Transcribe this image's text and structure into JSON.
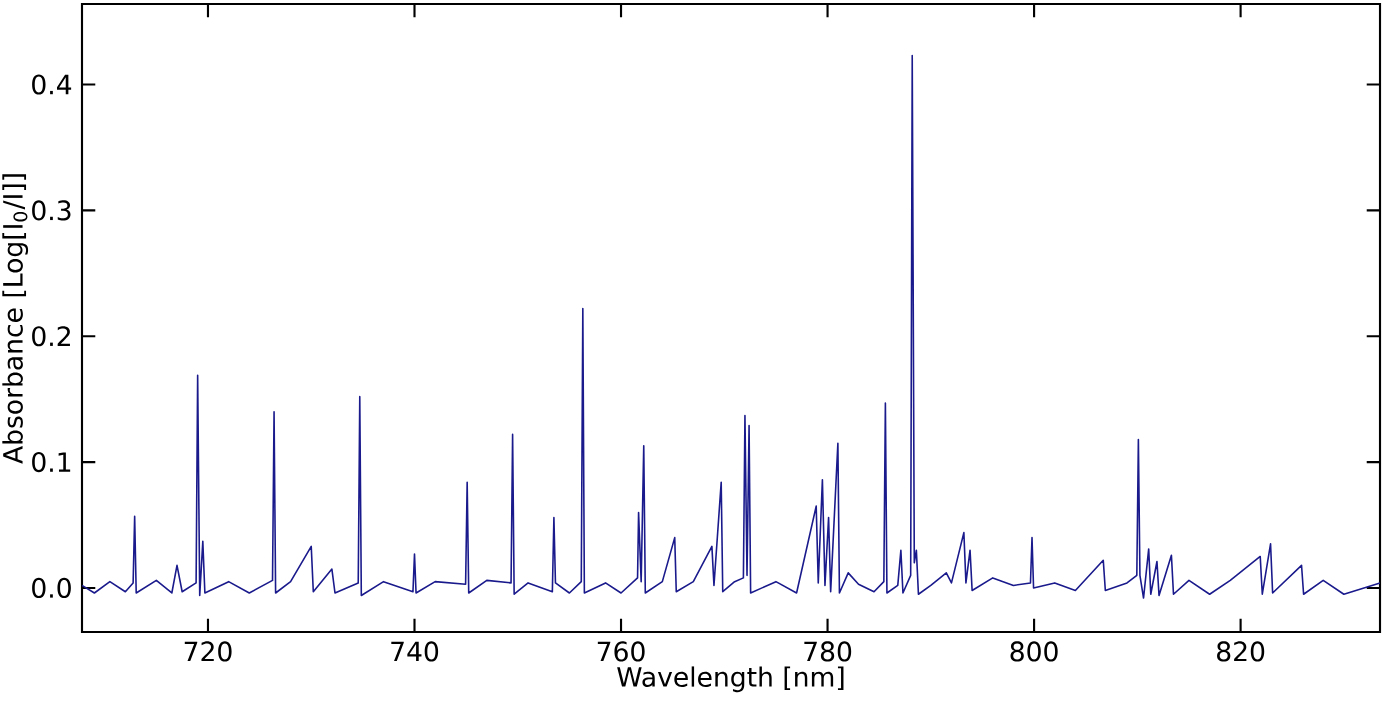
{
  "chart_data": {
    "type": "line",
    "xlabel": "Wavelength [nm]",
    "ylabel": "Absorbance [Log[I$_{0}$/I]]",
    "color": "#1a1a8c",
    "grid": false,
    "marker": "none",
    "line_style": "solid",
    "xlim": [
      707.8,
      833.5
    ],
    "ylim": [
      -0.035,
      0.464
    ],
    "xticks": [
      720,
      740,
      760,
      780,
      800,
      820
    ],
    "yticks": [
      {
        "value": 0,
        "label": "0.0"
      },
      {
        "value": 0.1,
        "label": "0.1"
      },
      {
        "value": 0.2,
        "label": "0.2"
      },
      {
        "value": 0.3,
        "label": "0.3"
      },
      {
        "value": 0.4,
        "label": "0.4"
      }
    ],
    "x": [
      707.8,
      709,
      710.5,
      712,
      712.75,
      712.9,
      713.05,
      715,
      716.5,
      717,
      717.5,
      718.85,
      719.0,
      719.2,
      719.5,
      719.7,
      722,
      724,
      726.25,
      726.4,
      726.55,
      728,
      730,
      730.2,
      732,
      732.3,
      734.55,
      734.7,
      734.85,
      737,
      739.85,
      740,
      740.15,
      742,
      744.95,
      745.1,
      745.25,
      747,
      749.35,
      749.5,
      749.65,
      751,
      753.35,
      753.5,
      753.65,
      755,
      756.15,
      756.3,
      756.45,
      758.5,
      760,
      761.6,
      761.7,
      761.95,
      762.2,
      762.35,
      764,
      765.2,
      765.35,
      767,
      768.8,
      769.0,
      769.7,
      769.85,
      771,
      771.85,
      772.0,
      772.2,
      772.4,
      772.55,
      775,
      777,
      778.9,
      779.1,
      779.5,
      779.75,
      780.1,
      780.3,
      781.0,
      781.15,
      782,
      783,
      784.5,
      785.45,
      785.6,
      785.75,
      786.8,
      787.1,
      787.3,
      788.05,
      788.2,
      788.4,
      788.6,
      788.8,
      790,
      791.5,
      792,
      793.2,
      793.4,
      793.8,
      794,
      796,
      798,
      799.65,
      799.8,
      799.95,
      802,
      804,
      806.7,
      806.9,
      809,
      809.95,
      810.1,
      810.25,
      810.6,
      811.1,
      811.3,
      811.9,
      812.1,
      813.3,
      813.5,
      815,
      817,
      819,
      821.9,
      822.1,
      822.9,
      823.1,
      825.9,
      826.1,
      828,
      830,
      833.5
    ],
    "values": [
      0.002,
      -0.004,
      0.005,
      -0.003,
      0.004,
      0.057,
      -0.004,
      0.006,
      -0.004,
      0.018,
      -0.003,
      0.004,
      0.169,
      -0.006,
      0.037,
      -0.004,
      0.005,
      -0.004,
      0.006,
      0.14,
      -0.004,
      0.005,
      0.033,
      -0.003,
      0.015,
      -0.004,
      0.004,
      0.152,
      -0.006,
      0.005,
      -0.003,
      0.027,
      -0.004,
      0.005,
      0.003,
      0.084,
      -0.004,
      0.006,
      0.004,
      0.122,
      -0.005,
      0.004,
      -0.003,
      0.056,
      0.004,
      -0.004,
      0.005,
      0.222,
      -0.004,
      0.004,
      -0.004,
      0.008,
      0.06,
      0.005,
      0.113,
      -0.004,
      0.005,
      0.04,
      -0.003,
      0.005,
      0.033,
      0.002,
      0.084,
      -0.003,
      0.005,
      0.008,
      0.137,
      0.01,
      0.129,
      -0.004,
      0.005,
      -0.004,
      0.065,
      0.004,
      0.086,
      0.002,
      0.056,
      -0.003,
      0.115,
      -0.004,
      0.012,
      0.003,
      -0.003,
      0.005,
      0.147,
      -0.004,
      0.002,
      0.03,
      -0.004,
      0.01,
      0.423,
      0.02,
      0.03,
      -0.005,
      0.002,
      0.012,
      0.004,
      0.044,
      0.004,
      0.03,
      -0.002,
      0.008,
      0.002,
      0.004,
      0.04,
      0.0,
      0.004,
      -0.002,
      0.022,
      -0.002,
      0.004,
      0.01,
      0.118,
      0.01,
      -0.008,
      0.031,
      -0.005,
      0.021,
      -0.006,
      0.026,
      -0.005,
      0.006,
      -0.005,
      0.006,
      0.025,
      -0.005,
      0.035,
      -0.004,
      0.018,
      -0.005,
      0.006,
      -0.005,
      0.004
    ]
  }
}
